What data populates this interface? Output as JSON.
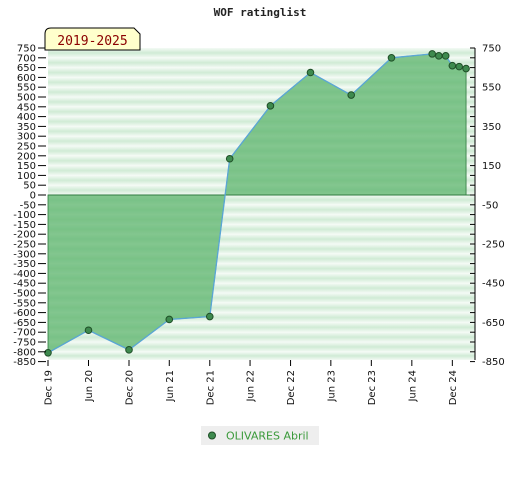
{
  "chart_data": {
    "type": "area",
    "title": "WOF ratinglist",
    "badge": "2019-2025",
    "xlabel": "",
    "ylabel": "",
    "x_tick_labels": [
      "Dec 19",
      "Jun 20",
      "Dec 20",
      "Jun 21",
      "Dec 21",
      "Jun 22",
      "Dec 22",
      "Jun 23",
      "Dec 23",
      "Jun 24",
      "Dec 24"
    ],
    "x_ticks": [
      "2019-12-01",
      "2020-06-01",
      "2020-12-01",
      "2021-06-01",
      "2021-12-01",
      "2022-06-01",
      "2022-12-01",
      "2023-06-01",
      "2023-12-01",
      "2024-06-01",
      "2024-12-01"
    ],
    "xlim": [
      "2019-12-01",
      "2025-05-01"
    ],
    "left_y_ticks": [
      750,
      700,
      650,
      600,
      550,
      500,
      450,
      400,
      350,
      300,
      250,
      200,
      150,
      100,
      50,
      0,
      -50,
      -100,
      -150,
      -200,
      -250,
      -300,
      -350,
      -400,
      -450,
      -500,
      -550,
      -600,
      -650,
      -700,
      -750,
      -800,
      -850
    ],
    "right_y_ticks": [
      750,
      550,
      350,
      150,
      -50,
      -250,
      -450,
      -650,
      -850
    ],
    "ylim": [
      -850,
      780
    ],
    "series": [
      {
        "name": "OLIVARES Abril",
        "x": [
          "2019-12-01",
          "2020-06-01",
          "2020-12-01",
          "2021-06-01",
          "2021-12-01",
          "2022-03-01",
          "2022-09-01",
          "2023-03-01",
          "2023-09-01",
          "2024-03-01",
          "2024-09-01",
          "2024-10-01",
          "2024-11-01",
          "2024-12-01",
          "2025-01-01",
          "2025-02-01"
        ],
        "y": [
          -805,
          -690,
          -790,
          -635,
          -620,
          185,
          455,
          625,
          510,
          700,
          720,
          710,
          710,
          660,
          655,
          645
        ]
      }
    ],
    "grid": true,
    "legend_position": "bottom-center",
    "colors": {
      "fill": "#5cb46c",
      "line": "#5aa6d6",
      "marker": "#3e8a4e",
      "band_light": "#f2f9f3",
      "band_dark": "#bfe3c6",
      "badge_bg": "#ffffcc"
    }
  }
}
